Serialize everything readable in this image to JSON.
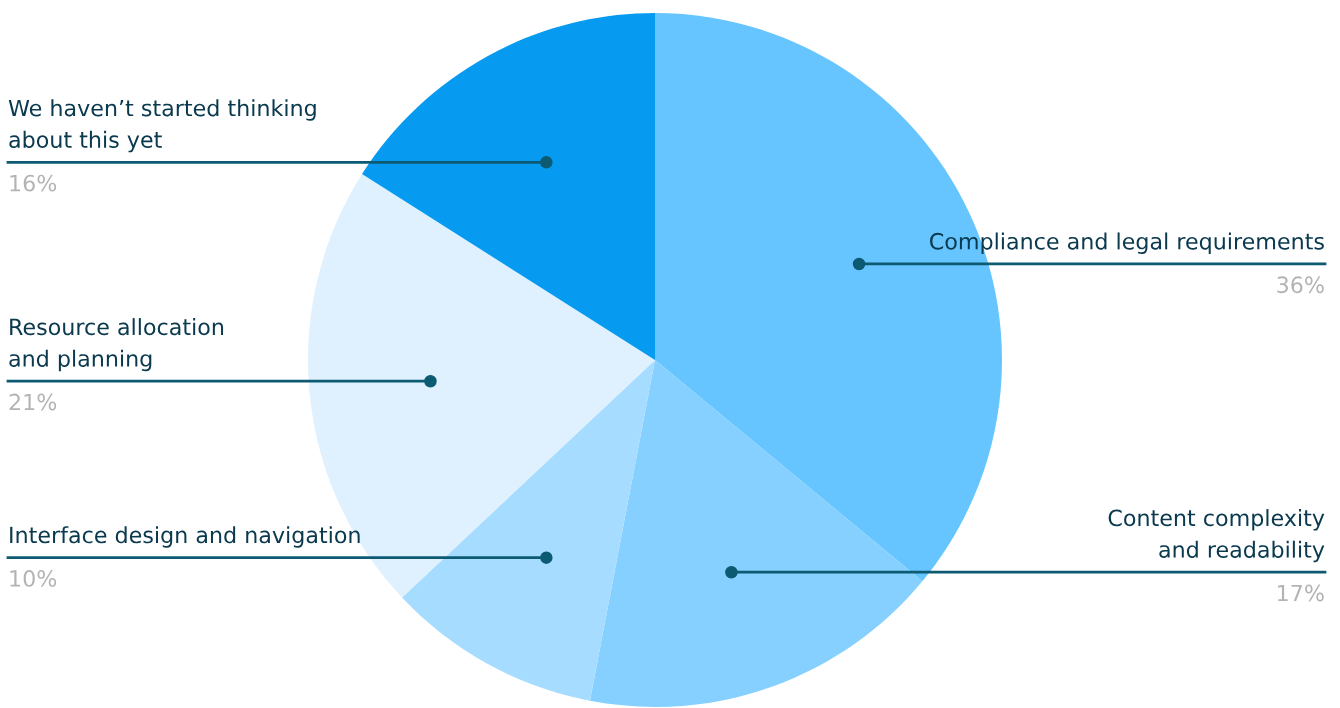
{
  "chart_data": {
    "type": "pie",
    "categories": [
      "Compliance and legal requirements",
      "Content complexity\nand readability",
      "Interface design and navigation",
      "Resource allocation\nand planning",
      "We haven’t started thinking\nabout this yet"
    ],
    "values": [
      36,
      17,
      10,
      21,
      16
    ],
    "value_labels": [
      "36%",
      "17%",
      "10%",
      "21%",
      "16%"
    ],
    "colors": [
      "#66c5ff",
      "#85d0ff",
      "#a6dcff",
      "#dff1fe",
      "#069bf0"
    ]
  }
}
